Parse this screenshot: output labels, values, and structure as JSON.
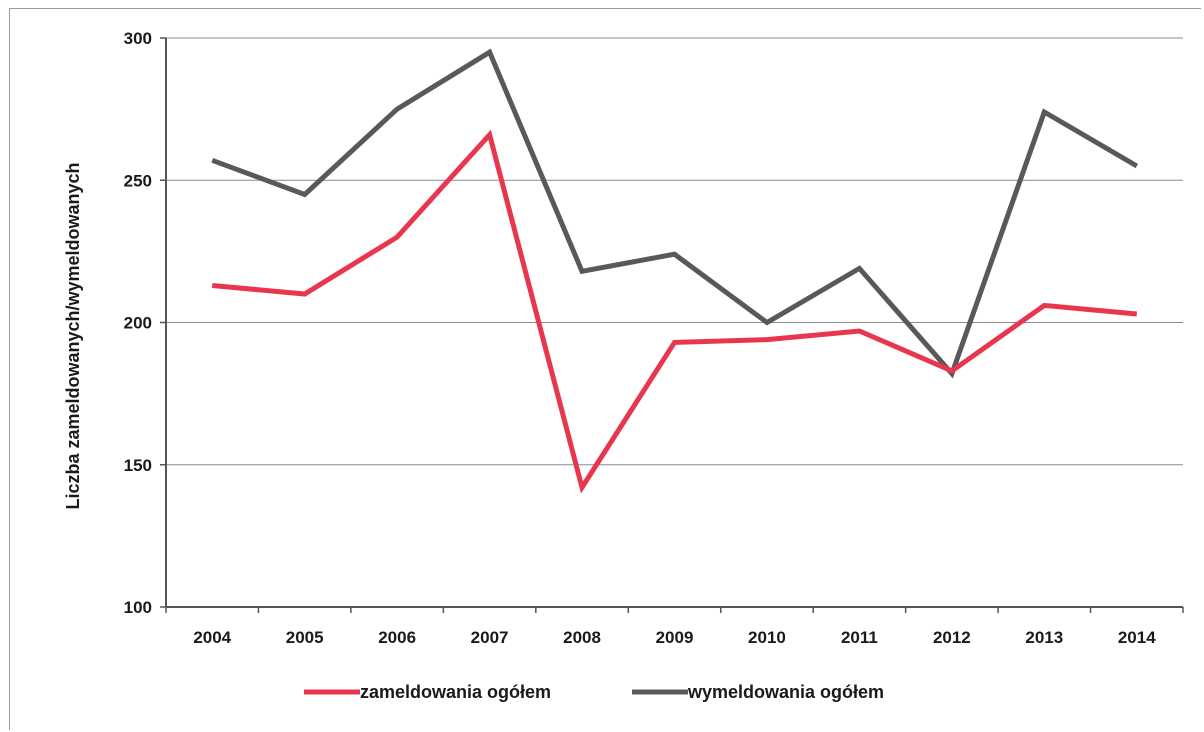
{
  "chart_data": {
    "type": "line",
    "title": "",
    "ylabel": "Liczba zameldowanych/wymeldowanych",
    "xlabel": "",
    "ylim": [
      100,
      300
    ],
    "yticks": [
      100,
      150,
      200,
      250,
      300
    ],
    "grid": true,
    "legend_position": "bottom",
    "categories": [
      "2004",
      "2005",
      "2006",
      "2007",
      "2008",
      "2009",
      "2010",
      "2011",
      "2012",
      "2013",
      "2014"
    ],
    "series": [
      {
        "name": "zameldowania ogółem",
        "color": "#e8364f",
        "values": [
          213,
          210,
          230,
          266,
          142,
          193,
          194,
          197,
          183,
          206,
          203
        ]
      },
      {
        "name": "wymeldowania ogółem",
        "color": "#595959",
        "values": [
          257,
          245,
          275,
          295,
          218,
          224,
          200,
          219,
          182,
          274,
          255
        ]
      }
    ]
  }
}
